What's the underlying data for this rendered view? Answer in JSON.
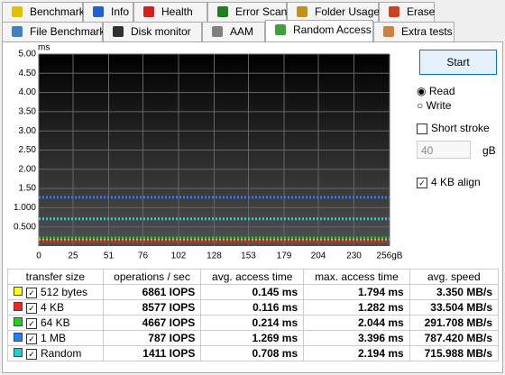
{
  "tabs": {
    "row1": [
      "Benchmark",
      "Info",
      "Health",
      "Error Scan",
      "Folder Usage",
      "Erase"
    ],
    "row2": [
      "File Benchmark",
      "Disk monitor",
      "AAM",
      "Random Access",
      "Extra tests"
    ]
  },
  "chart": {
    "type": "scatter",
    "y_unit": "ms",
    "ylim": [
      0,
      5
    ],
    "yticks": [
      {
        "value": 5,
        "label": "5.00"
      },
      {
        "value": 4.5,
        "label": "4.50"
      },
      {
        "value": 4,
        "label": "4.00"
      },
      {
        "value": 3.5,
        "label": "3.50"
      },
      {
        "value": 3,
        "label": "3.00"
      },
      {
        "value": 2.5,
        "label": "2.50"
      },
      {
        "value": 2,
        "label": "2.00"
      },
      {
        "value": 1.5,
        "label": "1.50"
      },
      {
        "value": 1,
        "label": "1.000"
      },
      {
        "value": 0.5,
        "label": "0.500"
      }
    ],
    "xlim": [
      0,
      256
    ],
    "xticks": [
      0,
      25,
      51,
      76,
      102,
      128,
      153,
      179,
      204,
      230,
      {
        "value": 256,
        "label": "256gB"
      }
    ],
    "grid": true,
    "series": [
      {
        "color": "#ffff00",
        "level": 0.15
      },
      {
        "color": "#ff2020",
        "level": 0.12
      },
      {
        "color": "#20d020",
        "level": 0.21
      },
      {
        "color": "#2080ff",
        "level": 1.27
      },
      {
        "color": "#20d0d0",
        "level": 0.71
      }
    ]
  },
  "controls": {
    "start": "Start",
    "read": "Read",
    "write": "Write",
    "short_stroke": "Short stroke",
    "stroke_value": "40",
    "stroke_unit": "gB",
    "align": "4 KB align"
  },
  "table": {
    "header": [
      "transfer size",
      "operations / sec",
      "avg. access time",
      "max. access time",
      "avg. speed"
    ],
    "rows": [
      [
        "512 bytes",
        "6861 IOPS",
        "0.145 ms",
        "1.794 ms",
        "3.350 MB/s"
      ],
      [
        "4 KB",
        "8577 IOPS",
        "0.116 ms",
        "1.282 ms",
        "33.504 MB/s"
      ],
      [
        "64 KB",
        "4667 IOPS",
        "0.214 ms",
        "2.044 ms",
        "291.708 MB/s"
      ],
      [
        "1 MB",
        "787 IOPS",
        "1.269 ms",
        "3.396 ms",
        "787.420 MB/s"
      ],
      [
        "Random",
        "1411 IOPS",
        "0.708 ms",
        "2.194 ms",
        "715.988 MB/s"
      ]
    ]
  }
}
